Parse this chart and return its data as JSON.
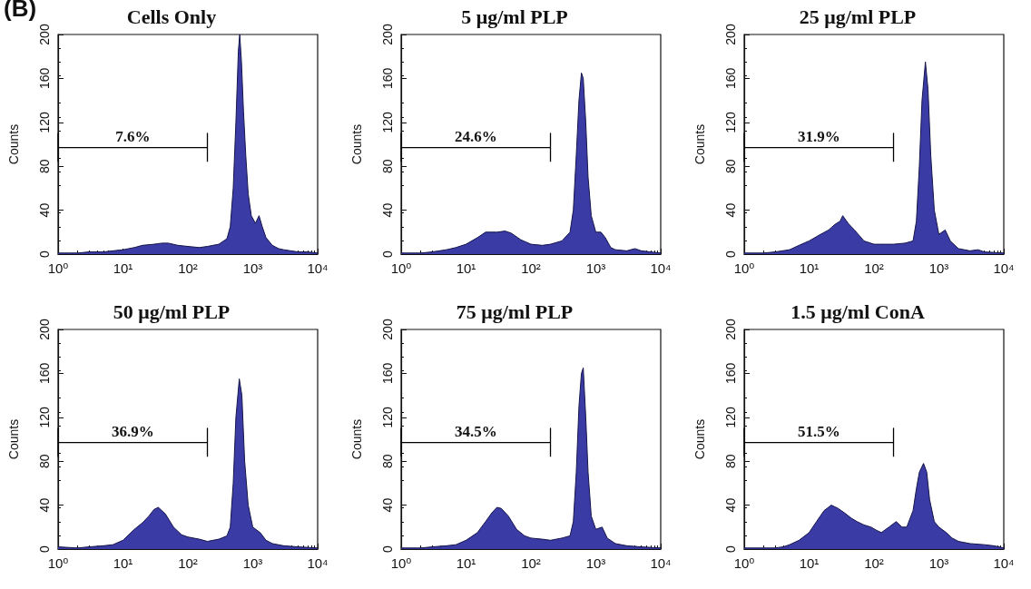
{
  "chart_data": [
    {
      "type": "area",
      "title": "Cells Only",
      "ylabel": "Counts",
      "annotations": [
        "(B)"
      ],
      "log": "x",
      "xlim": [
        1,
        10000
      ],
      "ylim": [
        0,
        200
      ],
      "xticks": [
        {
          "value": 1,
          "label": "10⁰"
        },
        {
          "value": 10,
          "label": "10¹"
        },
        {
          "value": 100,
          "label": "10²"
        },
        {
          "value": 1000,
          "label": "10³"
        },
        {
          "value": 10000,
          "label": "10⁴"
        }
      ],
      "yticks": [
        0,
        40,
        80,
        120,
        160,
        200
      ],
      "series": [
        {
          "type": "line",
          "name": "7.6%",
          "color": "#000000",
          "x": [
            1,
            1,
            1,
            200,
            200,
            200
          ],
          "values": [
            84,
            110,
            97,
            97,
            110,
            84
          ]
        },
        {
          "color": "#3b3ba6",
          "x": [
            1,
            1.5,
            2,
            3,
            5,
            7,
            10,
            15,
            20,
            30,
            40,
            50,
            70,
            100,
            150,
            200,
            300,
            400,
            450,
            500,
            550,
            600,
            630,
            670,
            720,
            780,
            850,
            950,
            1100,
            1250,
            1400,
            1600,
            2000,
            2500,
            3000,
            5000,
            7000,
            10000
          ],
          "values": [
            1,
            1,
            1,
            2,
            2,
            3,
            4,
            6,
            8,
            9,
            10,
            10,
            8,
            7,
            6,
            7,
            9,
            14,
            25,
            60,
            120,
            185,
            200,
            175,
            130,
            90,
            55,
            35,
            28,
            35,
            25,
            15,
            8,
            5,
            4,
            2,
            2,
            1
          ]
        }
      ]
    },
    {
      "type": "area",
      "title": "5 μg/ml PLP",
      "ylabel": "Counts",
      "log": "x",
      "xlim": [
        1,
        10000
      ],
      "ylim": [
        0,
        200
      ],
      "xticks": [
        {
          "value": 1,
          "label": "10⁰"
        },
        {
          "value": 10,
          "label": "10¹"
        },
        {
          "value": 100,
          "label": "10²"
        },
        {
          "value": 1000,
          "label": "10³"
        },
        {
          "value": 10000,
          "label": "10⁴"
        }
      ],
      "yticks": [
        0,
        40,
        80,
        120,
        160,
        200
      ],
      "series": [
        {
          "type": "line",
          "name": "24.6%",
          "color": "#000000",
          "x": [
            1,
            1,
            1,
            200,
            200,
            200
          ],
          "values": [
            84,
            110,
            97,
            97,
            110,
            84
          ]
        },
        {
          "color": "#3b3ba6",
          "x": [
            1,
            2,
            3,
            5,
            7,
            10,
            15,
            20,
            30,
            40,
            50,
            70,
            100,
            150,
            200,
            300,
            400,
            450,
            500,
            550,
            600,
            640,
            700,
            760,
            850,
            1000,
            1200,
            1400,
            1700,
            2000,
            3000,
            4000,
            5000,
            7000,
            10000
          ],
          "values": [
            1,
            1,
            2,
            4,
            6,
            9,
            15,
            20,
            20,
            21,
            19,
            13,
            9,
            8,
            9,
            12,
            20,
            40,
            90,
            140,
            165,
            160,
            120,
            70,
            35,
            20,
            20,
            15,
            6,
            4,
            3,
            5,
            3,
            2,
            1
          ]
        }
      ]
    },
    {
      "type": "area",
      "title": "25 μg/ml PLP",
      "ylabel": "Counts",
      "log": "x",
      "xlim": [
        1,
        10000
      ],
      "ylim": [
        0,
        200
      ],
      "xticks": [
        {
          "value": 1,
          "label": "10⁰"
        },
        {
          "value": 10,
          "label": "10¹"
        },
        {
          "value": 100,
          "label": "10²"
        },
        {
          "value": 1000,
          "label": "10³"
        },
        {
          "value": 10000,
          "label": "10⁴"
        }
      ],
      "yticks": [
        0,
        40,
        80,
        120,
        160,
        200
      ],
      "series": [
        {
          "type": "line",
          "name": "31.9%",
          "color": "#000000",
          "x": [
            1,
            1,
            1,
            200,
            200,
            200
          ],
          "values": [
            84,
            110,
            97,
            97,
            110,
            84
          ]
        },
        {
          "color": "#3b3ba6",
          "x": [
            1,
            2,
            3,
            5,
            7,
            10,
            15,
            20,
            25,
            30,
            33,
            40,
            50,
            70,
            100,
            150,
            200,
            300,
            400,
            450,
            500,
            550,
            620,
            680,
            750,
            850,
            1000,
            1250,
            1500,
            2000,
            3000,
            4000,
            5000,
            10000
          ],
          "values": [
            1,
            1,
            2,
            4,
            8,
            12,
            18,
            22,
            27,
            30,
            35,
            28,
            22,
            12,
            9,
            9,
            9,
            10,
            12,
            30,
            80,
            140,
            175,
            150,
            90,
            40,
            18,
            22,
            12,
            5,
            3,
            4,
            2,
            1
          ]
        }
      ]
    },
    {
      "type": "area",
      "title": "50 μg/ml PLP",
      "ylabel": "Counts",
      "log": "x",
      "xlim": [
        1,
        10000
      ],
      "ylim": [
        0,
        200
      ],
      "xticks": [
        {
          "value": 1,
          "label": "10⁰"
        },
        {
          "value": 10,
          "label": "10¹"
        },
        {
          "value": 100,
          "label": "10²"
        },
        {
          "value": 1000,
          "label": "10³"
        },
        {
          "value": 10000,
          "label": "10⁴"
        }
      ],
      "yticks": [
        0,
        40,
        80,
        120,
        160,
        200
      ],
      "series": [
        {
          "type": "line",
          "name": "36.9%",
          "color": "#000000",
          "x": [
            1,
            1,
            1,
            200,
            200,
            200
          ],
          "values": [
            84,
            110,
            97,
            97,
            110,
            84
          ]
        },
        {
          "color": "#3b3ba6",
          "x": [
            1,
            2,
            3,
            5,
            7,
            10,
            15,
            20,
            25,
            30,
            35,
            45,
            60,
            80,
            100,
            150,
            200,
            300,
            400,
            450,
            500,
            550,
            620,
            680,
            750,
            850,
            1000,
            1300,
            1600,
            2000,
            3000,
            5000,
            10000
          ],
          "values": [
            2,
            1,
            2,
            3,
            4,
            8,
            18,
            24,
            30,
            36,
            38,
            32,
            20,
            13,
            11,
            9,
            7,
            9,
            12,
            20,
            60,
            120,
            155,
            140,
            80,
            40,
            20,
            15,
            8,
            5,
            3,
            2,
            1
          ]
        }
      ]
    },
    {
      "type": "area",
      "title": "75 μg/ml PLP",
      "ylabel": "Counts",
      "log": "x",
      "xlim": [
        1,
        10000
      ],
      "ylim": [
        0,
        200
      ],
      "xticks": [
        {
          "value": 1,
          "label": "10⁰"
        },
        {
          "value": 10,
          "label": "10¹"
        },
        {
          "value": 100,
          "label": "10²"
        },
        {
          "value": 1000,
          "label": "10³"
        },
        {
          "value": 10000,
          "label": "10⁴"
        }
      ],
      "yticks": [
        0,
        40,
        80,
        120,
        160,
        200
      ],
      "series": [
        {
          "type": "line",
          "name": "34.5%",
          "color": "#000000",
          "x": [
            1,
            1,
            1,
            200,
            200,
            200
          ],
          "values": [
            84,
            110,
            97,
            97,
            110,
            84
          ]
        },
        {
          "color": "#3b3ba6",
          "x": [
            1,
            2,
            3,
            5,
            7,
            10,
            15,
            20,
            25,
            30,
            35,
            45,
            60,
            80,
            100,
            150,
            200,
            300,
            400,
            450,
            500,
            550,
            600,
            640,
            700,
            760,
            850,
            1000,
            1250,
            1500,
            2000,
            3000,
            5000,
            10000
          ],
          "values": [
            1,
            1,
            2,
            3,
            4,
            8,
            15,
            25,
            33,
            38,
            37,
            30,
            18,
            12,
            10,
            9,
            8,
            10,
            12,
            25,
            70,
            130,
            160,
            165,
            120,
            70,
            30,
            18,
            20,
            10,
            5,
            3,
            2,
            1
          ]
        }
      ]
    },
    {
      "type": "area",
      "title": "1.5 μg/ml ConA",
      "ylabel": "Counts",
      "log": "x",
      "xlim": [
        1,
        10000
      ],
      "ylim": [
        0,
        200
      ],
      "xticks": [
        {
          "value": 1,
          "label": "10⁰"
        },
        {
          "value": 10,
          "label": "10¹"
        },
        {
          "value": 100,
          "label": "10²"
        },
        {
          "value": 1000,
          "label": "10³"
        },
        {
          "value": 10000,
          "label": "10⁴"
        }
      ],
      "yticks": [
        0,
        40,
        80,
        120,
        160,
        200
      ],
      "series": [
        {
          "type": "line",
          "name": "51.5%",
          "color": "#000000",
          "x": [
            1,
            1,
            1,
            200,
            200,
            200
          ],
          "values": [
            84,
            110,
            97,
            97,
            110,
            84
          ]
        },
        {
          "color": "#3b3ba6",
          "x": [
            1,
            2,
            3,
            4,
            5,
            7,
            10,
            13,
            17,
            22,
            28,
            35,
            45,
            55,
            70,
            90,
            110,
            130,
            170,
            220,
            270,
            320,
            400,
            450,
            500,
            580,
            650,
            720,
            850,
            1000,
            1300,
            1600,
            2000,
            3000,
            5000,
            7000,
            10000
          ],
          "values": [
            1,
            1,
            1,
            2,
            4,
            8,
            15,
            25,
            35,
            40,
            37,
            33,
            28,
            25,
            22,
            20,
            17,
            15,
            20,
            25,
            20,
            20,
            35,
            55,
            70,
            78,
            70,
            45,
            25,
            20,
            15,
            10,
            7,
            5,
            4,
            3,
            1
          ]
        }
      ]
    }
  ]
}
